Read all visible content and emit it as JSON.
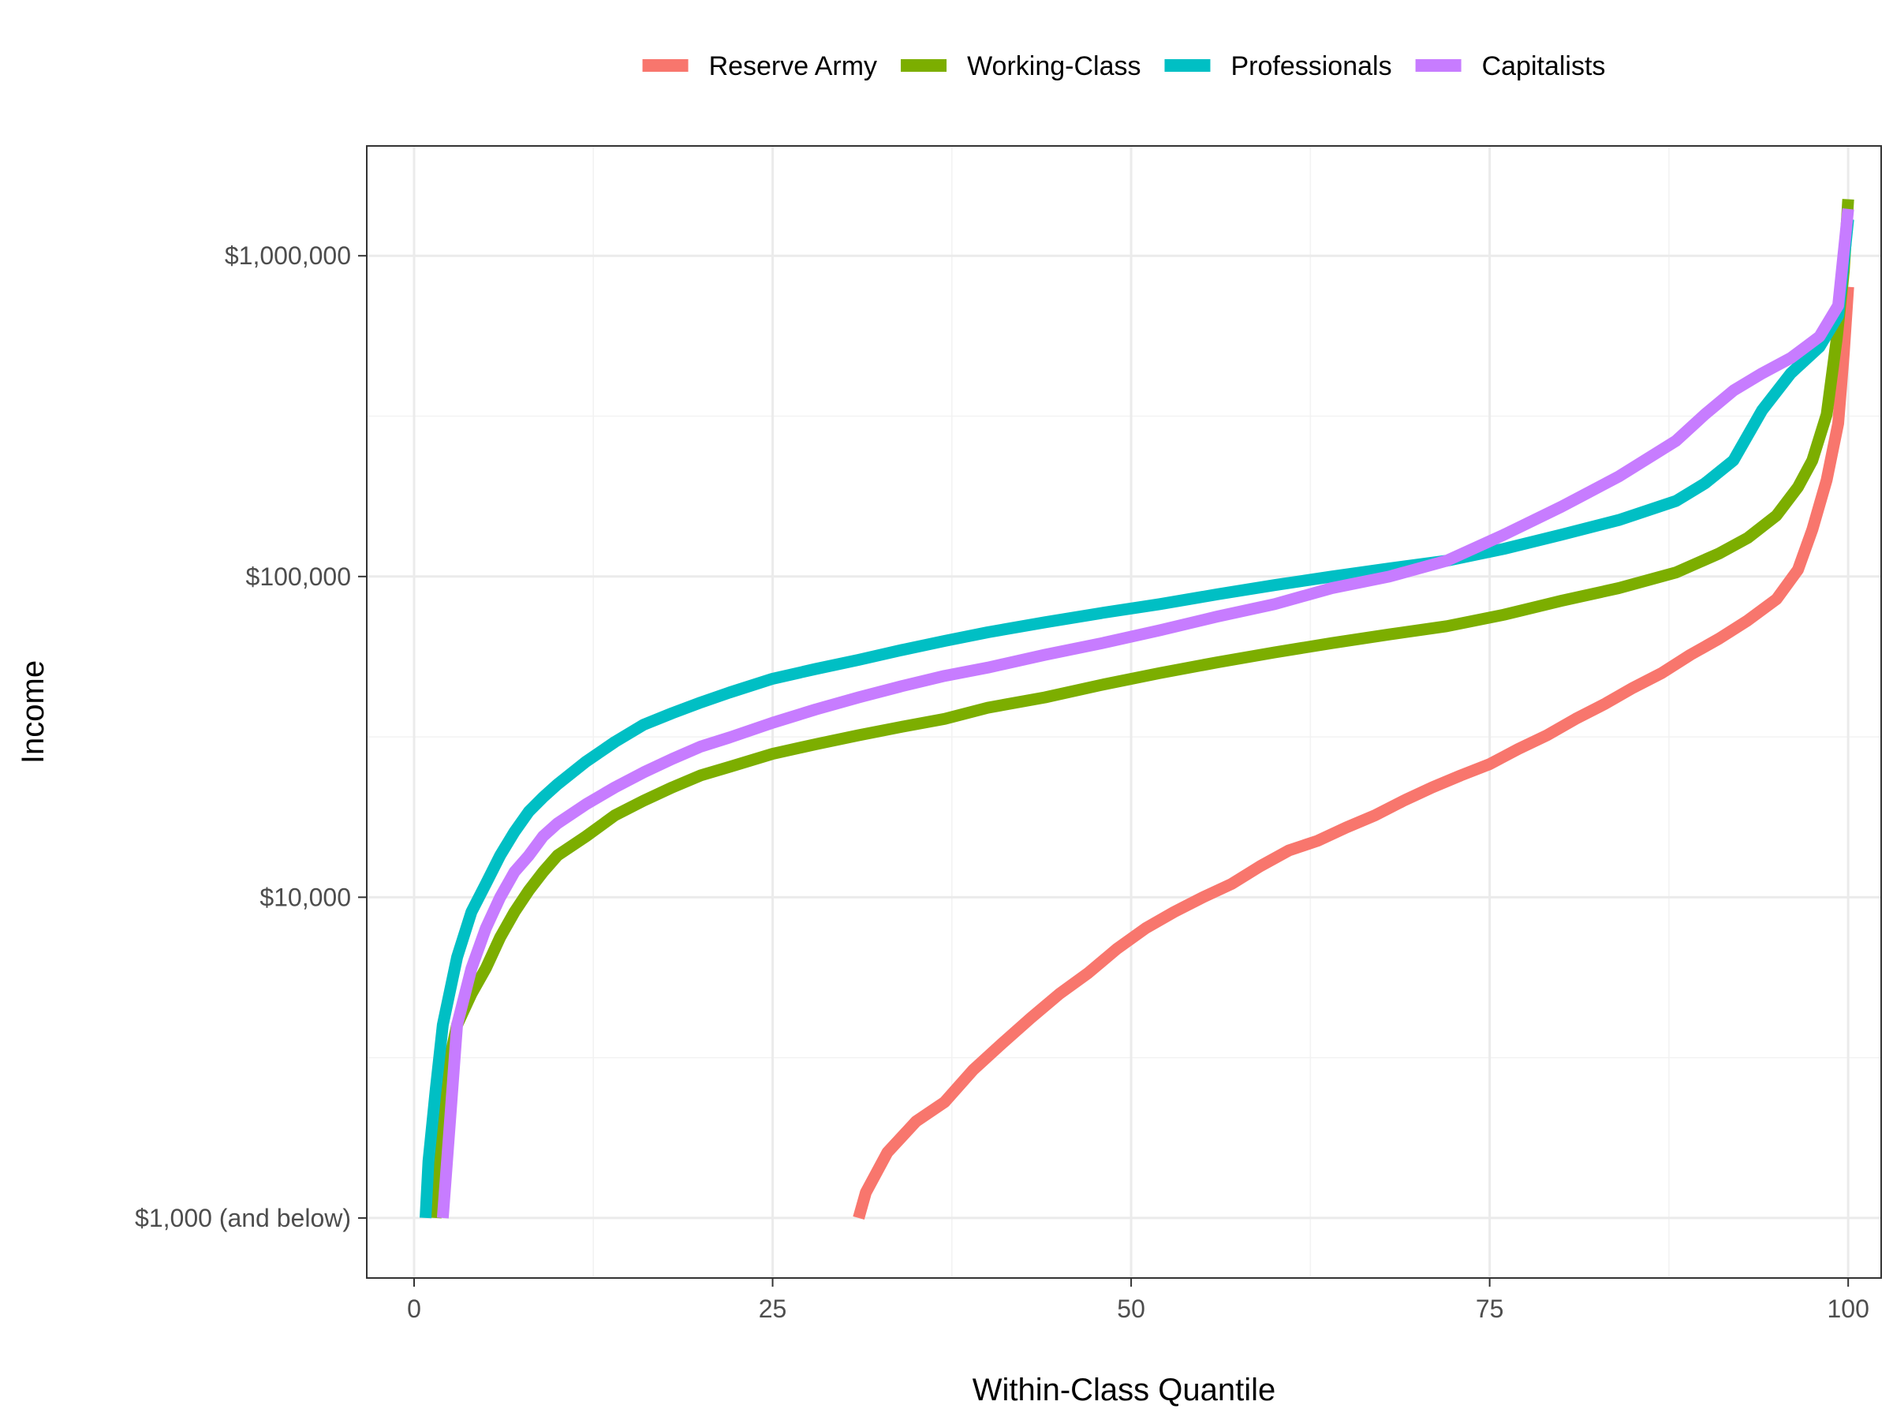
{
  "chart_data": {
    "type": "line",
    "xlabel": "Within-Class Quantile",
    "ylabel": "Income",
    "xlim": [
      -3.3,
      102.3
    ],
    "ylim": [
      650,
      2200000
    ],
    "y_scale": "log10",
    "x_ticks": [
      0,
      25,
      50,
      75,
      100
    ],
    "x_tick_labels": [
      "0",
      "25",
      "50",
      "75",
      "100"
    ],
    "y_ticks": [
      1000,
      10000,
      100000,
      1000000
    ],
    "y_tick_labels": [
      "$1,000 (and below)",
      "$10,000",
      "$100,000",
      "$1,000,000"
    ],
    "grid": true,
    "legend_position": "top",
    "series": [
      {
        "name": "Reserve Army",
        "color": "#F8766D",
        "x": [
          31,
          31.5,
          33,
          35,
          37,
          39,
          41,
          43,
          45,
          47,
          49,
          51,
          53,
          55,
          57,
          59,
          61,
          63,
          65,
          67,
          69,
          71,
          73,
          75,
          77,
          79,
          81,
          83,
          85,
          87,
          89,
          91,
          93,
          95,
          96.5,
          97.5,
          98.5,
          99.3,
          99.7,
          100
        ],
        "y": [
          1000,
          1200,
          1600,
          2000,
          2300,
          2900,
          3500,
          4200,
          5000,
          5800,
          6900,
          8000,
          9000,
          10000,
          11000,
          12500,
          14000,
          15000,
          16500,
          18000,
          20000,
          22000,
          24000,
          26000,
          29000,
          32000,
          36000,
          40000,
          45000,
          50000,
          57000,
          64000,
          73000,
          85000,
          105000,
          140000,
          200000,
          300000,
          500000,
          800000
        ]
      },
      {
        "name": "Working-Class",
        "color": "#7CAE00",
        "x": [
          1.5,
          2,
          3,
          4,
          5,
          6,
          7,
          8,
          9,
          10,
          12,
          14,
          16,
          18,
          20,
          22,
          25,
          28,
          31,
          34,
          37,
          40,
          44,
          48,
          52,
          56,
          60,
          64,
          68,
          72,
          76,
          80,
          84,
          88,
          91,
          93,
          95,
          96.5,
          97.5,
          98.5,
          99.2,
          99.7,
          100
        ],
        "y": [
          1000,
          2500,
          4000,
          5000,
          6000,
          7500,
          9000,
          10500,
          12000,
          13500,
          15500,
          18000,
          20000,
          22000,
          24000,
          25500,
          28000,
          30000,
          32000,
          34000,
          36000,
          39000,
          42000,
          46000,
          50000,
          54000,
          58000,
          62000,
          66000,
          70000,
          76000,
          84000,
          92000,
          103000,
          118000,
          132000,
          155000,
          190000,
          230000,
          320000,
          550000,
          900000,
          1500000
        ]
      },
      {
        "name": "Professionals",
        "color": "#00BFC4",
        "x": [
          0.8,
          1,
          1.5,
          2,
          3,
          4,
          5,
          6,
          7,
          8,
          9,
          10,
          12,
          14,
          16,
          18,
          20,
          22,
          25,
          28,
          31,
          34,
          37,
          40,
          44,
          48,
          52,
          56,
          60,
          64,
          68,
          72,
          76,
          80,
          84,
          88,
          90,
          92,
          94,
          96,
          98,
          99.3,
          100
        ],
        "y": [
          1000,
          1500,
          2500,
          4000,
          6500,
          9000,
          11000,
          13500,
          16000,
          18500,
          20500,
          22500,
          26500,
          30500,
          34500,
          37500,
          40500,
          43500,
          48000,
          51500,
          55000,
          59000,
          63000,
          67000,
          72000,
          77000,
          82000,
          88000,
          94000,
          100000,
          106000,
          112000,
          122000,
          135000,
          150000,
          172000,
          195000,
          230000,
          330000,
          430000,
          520000,
          650000,
          1300000
        ]
      },
      {
        "name": "Capitalists",
        "color": "#C77CFF",
        "x": [
          2,
          2.5,
          3,
          4,
          5,
          6,
          7,
          8,
          9,
          10,
          12,
          14,
          16,
          18,
          20,
          22,
          25,
          28,
          31,
          34,
          37,
          40,
          44,
          48,
          52,
          56,
          60,
          64,
          68,
          72,
          76,
          80,
          84,
          88,
          90,
          92,
          94,
          96,
          98,
          99.3,
          100
        ],
        "y": [
          1000,
          2000,
          4000,
          6000,
          8000,
          10000,
          12000,
          13500,
          15500,
          17000,
          19500,
          22000,
          24500,
          27000,
          29500,
          31500,
          35000,
          38500,
          42000,
          45500,
          49000,
          52000,
          57000,
          62000,
          68000,
          75000,
          82000,
          92000,
          100000,
          112000,
          135000,
          165000,
          205000,
          265000,
          320000,
          380000,
          430000,
          480000,
          560000,
          700000,
          1400000
        ]
      }
    ]
  }
}
